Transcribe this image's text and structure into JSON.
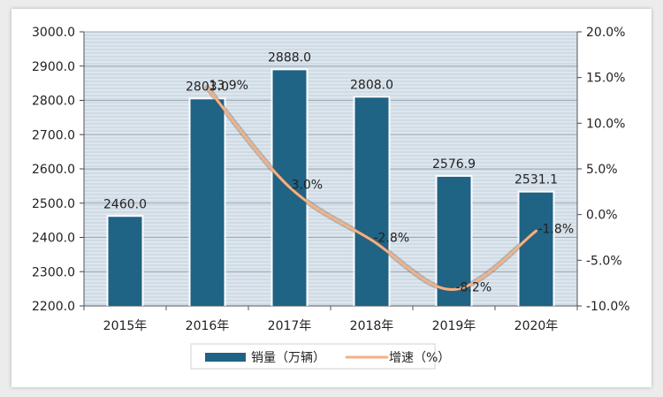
{
  "chart_data": {
    "type": "bar",
    "categories": [
      "2015年",
      "2016年",
      "2017年",
      "2018年",
      "2019年",
      "2020年"
    ],
    "series": [
      {
        "name": "销量（万辆）",
        "type": "bar",
        "axis": "left",
        "values": [
          2460.0,
          2803.0,
          2888.0,
          2808.0,
          2576.9,
          2531.1
        ],
        "labels": [
          "2460.0",
          "2803.0",
          "2888.0",
          "2808.0",
          "2576.9",
          "2531.1"
        ],
        "color": "#1f6385"
      },
      {
        "name": "增速（%）",
        "type": "line",
        "axis": "right",
        "values": [
          null,
          13.9,
          3.0,
          -2.8,
          -8.2,
          -1.8
        ],
        "labels": [
          "",
          "13.9%",
          "3.0%",
          "-2.8%",
          "-8.2%",
          "-1.8%"
        ],
        "color": "#f4b183"
      }
    ],
    "y_left": {
      "min": 2200,
      "max": 3000,
      "step": 100,
      "ticks": [
        "2200.0",
        "2300.0",
        "2400.0",
        "2500.0",
        "2600.0",
        "2700.0",
        "2800.0",
        "2900.0",
        "3000.0"
      ]
    },
    "y_right": {
      "min": -10,
      "max": 20,
      "step": 5,
      "ticks": [
        "-10.0%",
        "-5.0%",
        "0.0%",
        "5.0%",
        "10.0%",
        "15.0%",
        "20.0%"
      ]
    },
    "grid": true,
    "legend_position": "bottom",
    "colors": {
      "plot_bg": "#dde6ee",
      "grid": "#9ba9b6",
      "bar": "#1f6385",
      "line": "#f4b183"
    }
  }
}
